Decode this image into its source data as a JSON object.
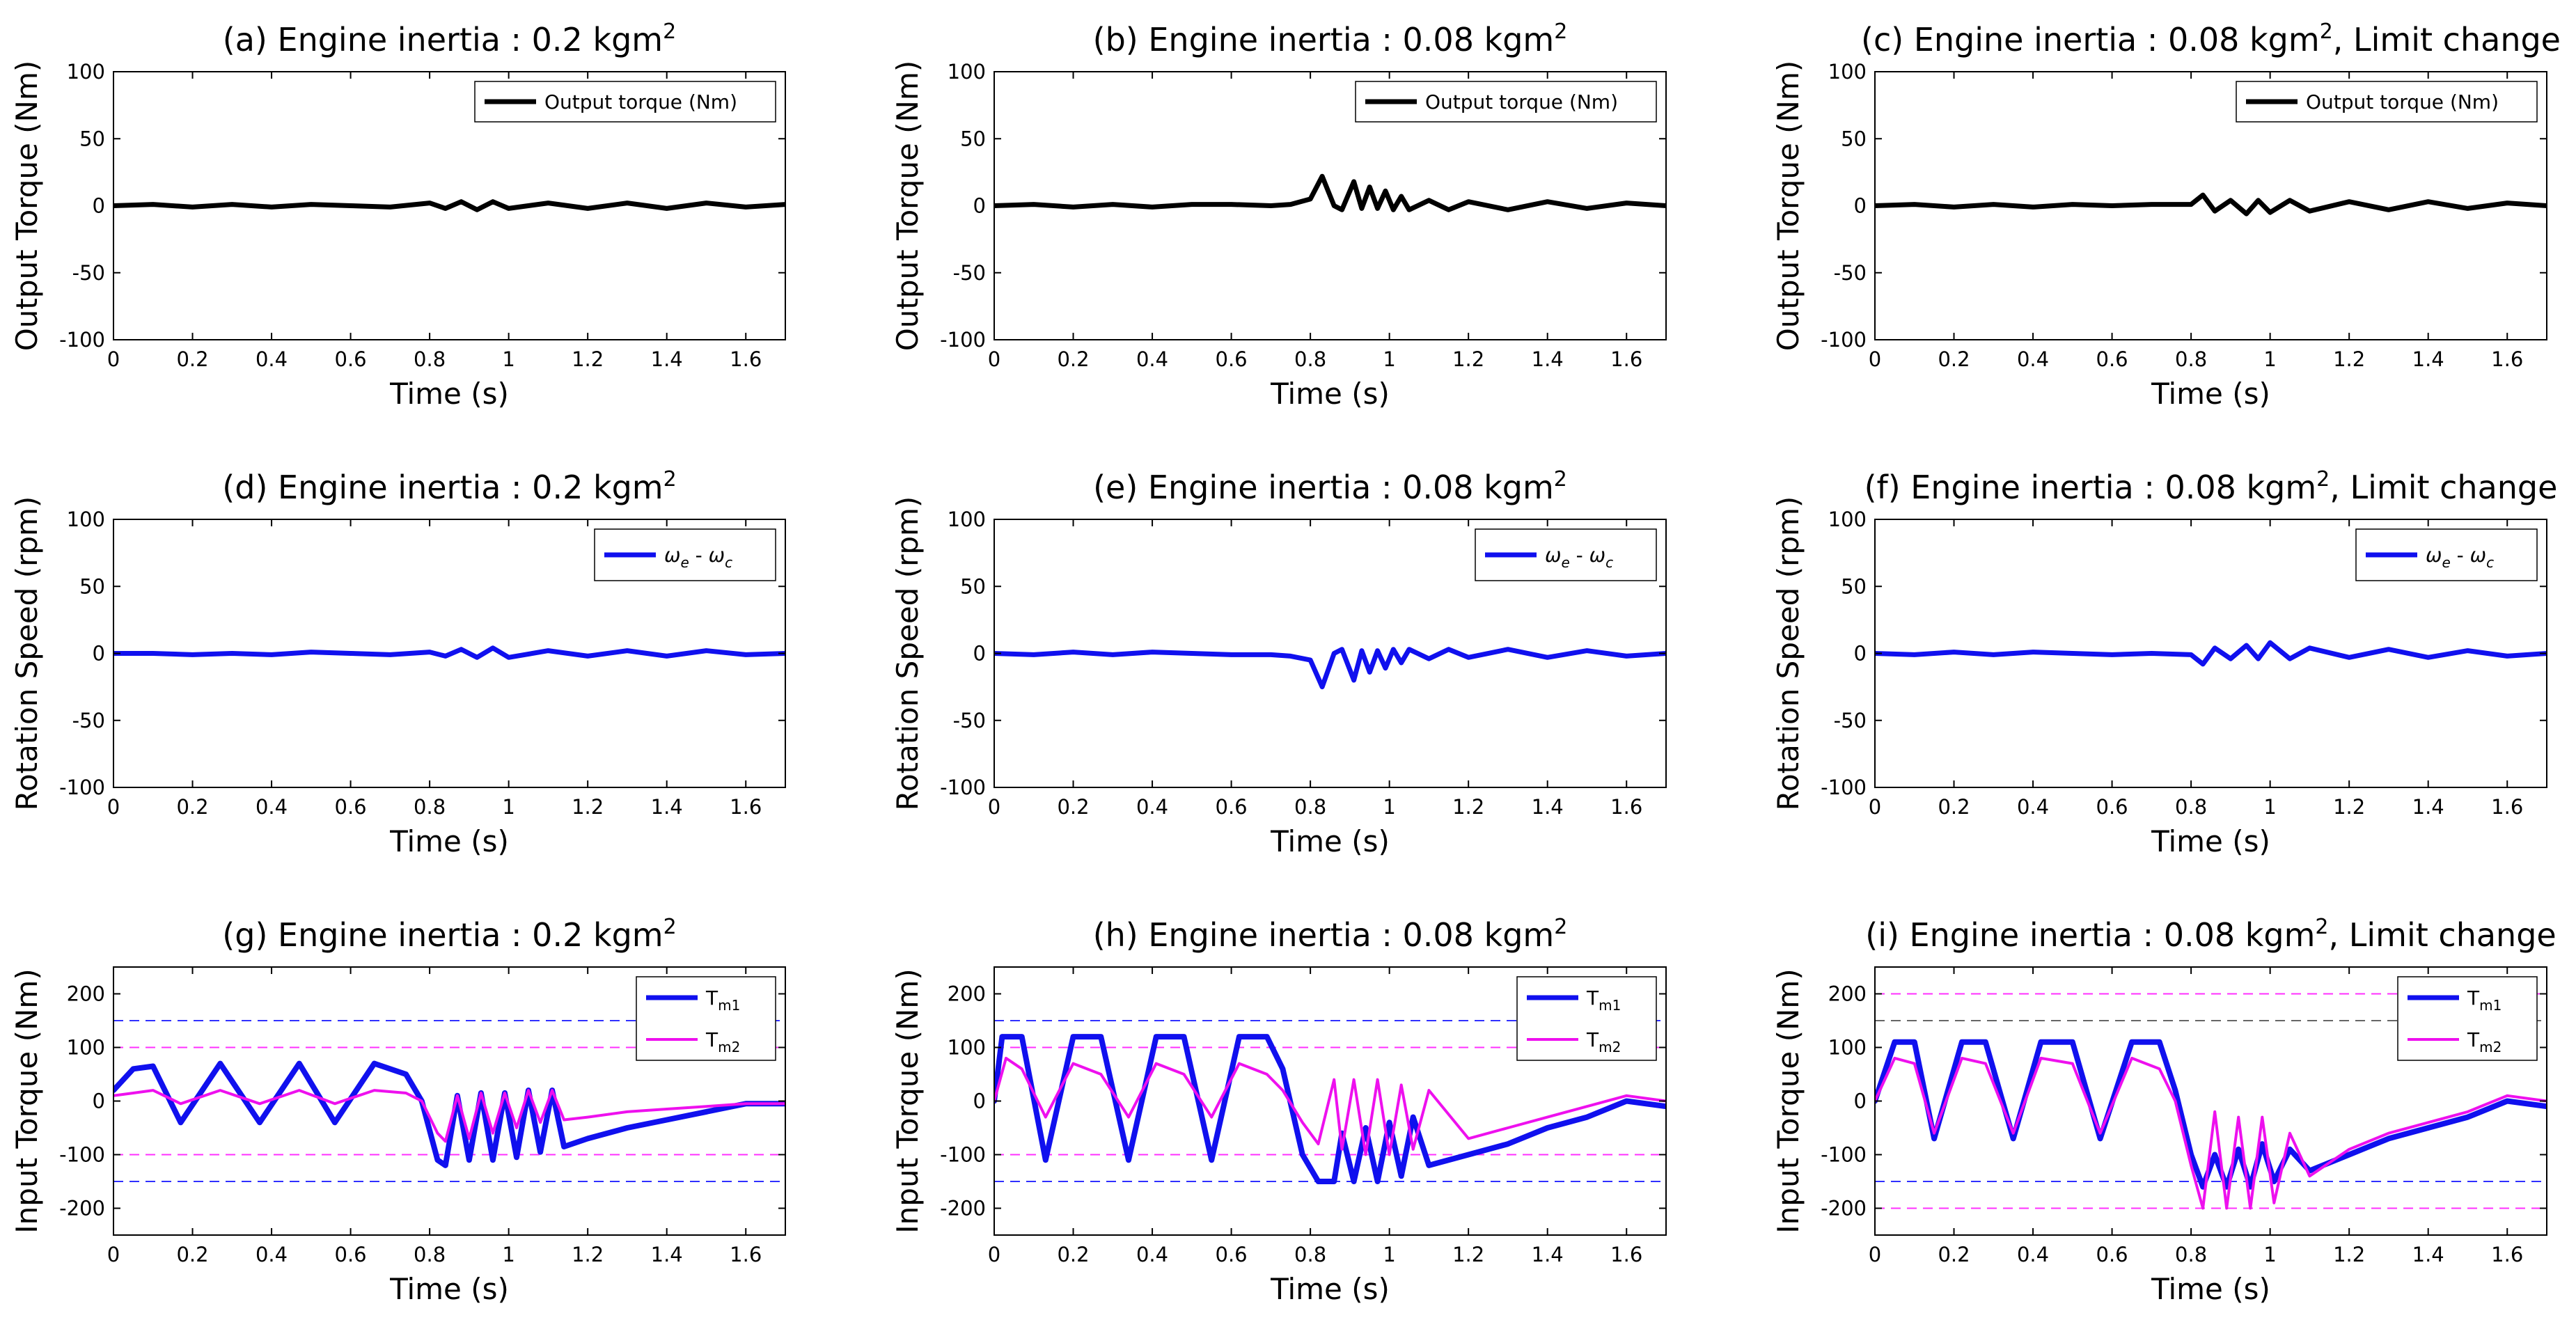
{
  "chart_data": [
    {
      "id": "a",
      "type": "line",
      "title": "(a) Engine inertia : 0.2 kgm",
      "title_sup": "2",
      "xlabel": "Time (s)",
      "ylabel": "Output Torque (Nm)",
      "xlim": [
        0,
        1.7
      ],
      "ylim": [
        -100,
        100
      ],
      "xticks": [
        0,
        0.2,
        0.4,
        0.6,
        0.8,
        1,
        1.2,
        1.4,
        1.6
      ],
      "yticks": [
        -100,
        -50,
        0,
        50,
        100
      ],
      "series": [
        {
          "name": "Output torque (Nm)",
          "color": "#000000",
          "x": [
            0,
            0.1,
            0.2,
            0.3,
            0.4,
            0.5,
            0.6,
            0.7,
            0.8,
            0.84,
            0.88,
            0.92,
            0.96,
            1.0,
            1.1,
            1.2,
            1.3,
            1.4,
            1.5,
            1.6,
            1.7
          ],
          "y": [
            0,
            1,
            -1,
            1,
            -1,
            1,
            0,
            -1,
            2,
            -2,
            3,
            -3,
            3,
            -2,
            2,
            -2,
            2,
            -2,
            2,
            -1,
            1
          ]
        }
      ],
      "hlines": []
    },
    {
      "id": "b",
      "type": "line",
      "title": "(b) Engine inertia : 0.08 kgm",
      "title_sup": "2",
      "xlabel": "Time (s)",
      "ylabel": "Output Torque (Nm)",
      "xlim": [
        0,
        1.7
      ],
      "ylim": [
        -100,
        100
      ],
      "xticks": [
        0,
        0.2,
        0.4,
        0.6,
        0.8,
        1,
        1.2,
        1.4,
        1.6
      ],
      "yticks": [
        -100,
        -50,
        0,
        50,
        100
      ],
      "series": [
        {
          "name": "Output torque (Nm)",
          "color": "#000000",
          "x": [
            0,
            0.1,
            0.2,
            0.3,
            0.4,
            0.5,
            0.6,
            0.7,
            0.75,
            0.8,
            0.83,
            0.86,
            0.88,
            0.91,
            0.93,
            0.95,
            0.97,
            0.99,
            1.01,
            1.03,
            1.05,
            1.1,
            1.15,
            1.2,
            1.3,
            1.4,
            1.5,
            1.6,
            1.7
          ],
          "y": [
            0,
            1,
            -1,
            1,
            -1,
            1,
            1,
            0,
            1,
            5,
            22,
            0,
            -3,
            18,
            -2,
            14,
            -2,
            11,
            -3,
            7,
            -3,
            4,
            -3,
            3,
            -3,
            3,
            -2,
            2,
            0
          ]
        }
      ],
      "hlines": []
    },
    {
      "id": "c",
      "type": "line",
      "title": "(c) Engine inertia : 0.08 kgm",
      "title_sup": "2",
      "title_suffix": ", Limit change",
      "xlabel": "Time (s)",
      "ylabel": "Output Torque (Nm)",
      "xlim": [
        0,
        1.7
      ],
      "ylim": [
        -100,
        100
      ],
      "xticks": [
        0,
        0.2,
        0.4,
        0.6,
        0.8,
        1,
        1.2,
        1.4,
        1.6
      ],
      "yticks": [
        -100,
        -50,
        0,
        50,
        100
      ],
      "series": [
        {
          "name": "Output torque (Nm)",
          "color": "#000000",
          "x": [
            0,
            0.1,
            0.2,
            0.3,
            0.4,
            0.5,
            0.6,
            0.7,
            0.8,
            0.83,
            0.86,
            0.9,
            0.94,
            0.97,
            1.0,
            1.05,
            1.1,
            1.2,
            1.3,
            1.4,
            1.5,
            1.6,
            1.7
          ],
          "y": [
            0,
            1,
            -1,
            1,
            -1,
            1,
            0,
            1,
            1,
            8,
            -4,
            4,
            -6,
            4,
            -5,
            4,
            -4,
            3,
            -3,
            3,
            -2,
            2,
            0
          ]
        }
      ],
      "hlines": []
    },
    {
      "id": "d",
      "type": "line",
      "title": "(d) Engine inertia : 0.2 kgm",
      "title_sup": "2",
      "xlabel": "Time (s)",
      "ylabel": "Rotation Speed (rpm)",
      "xlim": [
        0,
        1.7
      ],
      "ylim": [
        -100,
        100
      ],
      "xticks": [
        0,
        0.2,
        0.4,
        0.6,
        0.8,
        1,
        1.2,
        1.4,
        1.6
      ],
      "yticks": [
        -100,
        -50,
        0,
        50,
        100
      ],
      "series": [
        {
          "name": "ω_e - ω_c",
          "color": "#1010ee",
          "x": [
            0,
            0.1,
            0.2,
            0.3,
            0.4,
            0.5,
            0.6,
            0.7,
            0.8,
            0.84,
            0.88,
            0.92,
            0.96,
            1.0,
            1.1,
            1.2,
            1.3,
            1.4,
            1.5,
            1.6,
            1.7
          ],
          "y": [
            0,
            0,
            -1,
            0,
            -1,
            1,
            0,
            -1,
            1,
            -2,
            3,
            -3,
            4,
            -3,
            2,
            -2,
            2,
            -2,
            2,
            -1,
            0
          ]
        }
      ],
      "hlines": []
    },
    {
      "id": "e",
      "type": "line",
      "title": "(e) Engine inertia : 0.08 kgm",
      "title_sup": "2",
      "xlabel": "Time (s)",
      "ylabel": "Rotation Speed (rpm)",
      "xlim": [
        0,
        1.7
      ],
      "ylim": [
        -100,
        100
      ],
      "xticks": [
        0,
        0.2,
        0.4,
        0.6,
        0.8,
        1,
        1.2,
        1.4,
        1.6
      ],
      "yticks": [
        -100,
        -50,
        0,
        50,
        100
      ],
      "series": [
        {
          "name": "ω_e - ω_c",
          "color": "#1010ee",
          "x": [
            0,
            0.1,
            0.2,
            0.3,
            0.4,
            0.5,
            0.6,
            0.7,
            0.75,
            0.8,
            0.83,
            0.86,
            0.88,
            0.91,
            0.93,
            0.95,
            0.97,
            0.99,
            1.01,
            1.03,
            1.05,
            1.1,
            1.15,
            1.2,
            1.3,
            1.4,
            1.5,
            1.6,
            1.7
          ],
          "y": [
            0,
            -1,
            1,
            -1,
            1,
            0,
            -1,
            -1,
            -2,
            -5,
            -25,
            0,
            3,
            -20,
            2,
            -14,
            2,
            -11,
            3,
            -7,
            3,
            -4,
            3,
            -3,
            3,
            -3,
            2,
            -2,
            0
          ]
        }
      ],
      "hlines": []
    },
    {
      "id": "f",
      "type": "line",
      "title": "(f) Engine inertia : 0.08 kgm",
      "title_sup": "2",
      "title_suffix": ", Limit change",
      "xlabel": "Time (s)",
      "ylabel": "Rotation Speed (rpm)",
      "xlim": [
        0,
        1.7
      ],
      "ylim": [
        -100,
        100
      ],
      "xticks": [
        0,
        0.2,
        0.4,
        0.6,
        0.8,
        1,
        1.2,
        1.4,
        1.6
      ],
      "yticks": [
        -100,
        -50,
        0,
        50,
        100
      ],
      "series": [
        {
          "name": "ω_e - ω_c",
          "color": "#1010ee",
          "x": [
            0,
            0.1,
            0.2,
            0.3,
            0.4,
            0.5,
            0.6,
            0.7,
            0.8,
            0.83,
            0.86,
            0.9,
            0.94,
            0.97,
            1.0,
            1.05,
            1.1,
            1.2,
            1.3,
            1.4,
            1.5,
            1.6,
            1.7
          ],
          "y": [
            0,
            -1,
            1,
            -1,
            1,
            0,
            -1,
            0,
            -1,
            -8,
            4,
            -4,
            6,
            -4,
            8,
            -4,
            4,
            -3,
            3,
            -3,
            2,
            -2,
            0
          ]
        }
      ],
      "hlines": []
    },
    {
      "id": "g",
      "type": "line",
      "title": "(g) Engine inertia : 0.2 kgm",
      "title_sup": "2",
      "xlabel": "Time (s)",
      "ylabel": "Input Torque (Nm)",
      "xlim": [
        0,
        1.7
      ],
      "ylim": [
        -250,
        250
      ],
      "xticks": [
        0,
        0.2,
        0.4,
        0.6,
        0.8,
        1,
        1.2,
        1.4,
        1.6
      ],
      "yticks": [
        -200,
        -100,
        0,
        100,
        200
      ],
      "series": [
        {
          "name": "T_m1",
          "color": "#1010ee",
          "x": [
            0,
            0.05,
            0.1,
            0.17,
            0.27,
            0.37,
            0.47,
            0.56,
            0.66,
            0.74,
            0.78,
            0.82,
            0.84,
            0.87,
            0.9,
            0.93,
            0.96,
            0.99,
            1.02,
            1.05,
            1.08,
            1.11,
            1.14,
            1.2,
            1.3,
            1.4,
            1.5,
            1.6,
            1.7
          ],
          "y": [
            20,
            60,
            65,
            -40,
            70,
            -40,
            70,
            -40,
            70,
            50,
            0,
            -110,
            -120,
            10,
            -110,
            15,
            -110,
            15,
            -105,
            20,
            -95,
            20,
            -85,
            -70,
            -50,
            -35,
            -20,
            -5,
            -5
          ]
        },
        {
          "name": "T_m2",
          "color": "#ee10ee",
          "x": [
            0,
            0.05,
            0.1,
            0.17,
            0.27,
            0.37,
            0.47,
            0.56,
            0.66,
            0.74,
            0.78,
            0.82,
            0.84,
            0.87,
            0.9,
            0.93,
            0.96,
            0.99,
            1.02,
            1.05,
            1.08,
            1.11,
            1.14,
            1.2,
            1.3,
            1.4,
            1.5,
            1.6,
            1.7
          ],
          "y": [
            10,
            15,
            20,
            -5,
            20,
            -5,
            20,
            -5,
            20,
            15,
            0,
            -60,
            -75,
            10,
            -70,
            15,
            -60,
            15,
            -50,
            20,
            -40,
            20,
            -35,
            -30,
            -20,
            -15,
            -10,
            -5,
            -5
          ]
        }
      ],
      "hlines": [
        {
          "y": 150,
          "color": "#3030ff"
        },
        {
          "y": -150,
          "color": "#3030ff"
        },
        {
          "y": 100,
          "color": "#ff30ff"
        },
        {
          "y": -100,
          "color": "#ff30ff"
        }
      ]
    },
    {
      "id": "h",
      "type": "line",
      "title": "(h) Engine inertia : 0.08 kgm",
      "title_sup": "2",
      "xlabel": "Time (s)",
      "ylabel": "Input Torque (Nm)",
      "xlim": [
        0,
        1.7
      ],
      "ylim": [
        -250,
        250
      ],
      "xticks": [
        0,
        0.2,
        0.4,
        0.6,
        0.8,
        1,
        1.2,
        1.4,
        1.6
      ],
      "yticks": [
        -200,
        -100,
        0,
        100,
        200
      ],
      "series": [
        {
          "name": "T_m1",
          "color": "#1010ee",
          "x": [
            0,
            0.02,
            0.07,
            0.13,
            0.2,
            0.27,
            0.34,
            0.41,
            0.48,
            0.55,
            0.62,
            0.69,
            0.73,
            0.78,
            0.82,
            0.86,
            0.88,
            0.91,
            0.94,
            0.97,
            1.0,
            1.03,
            1.06,
            1.1,
            1.2,
            1.3,
            1.4,
            1.5,
            1.6,
            1.7
          ],
          "y": [
            0,
            120,
            120,
            -110,
            120,
            120,
            -110,
            120,
            120,
            -110,
            120,
            120,
            60,
            -100,
            -150,
            -150,
            -60,
            -150,
            -50,
            -150,
            -40,
            -140,
            -30,
            -120,
            -100,
            -80,
            -50,
            -30,
            0,
            -10
          ]
        },
        {
          "name": "T_m2",
          "color": "#ee10ee",
          "x": [
            0,
            0.03,
            0.07,
            0.13,
            0.2,
            0.27,
            0.34,
            0.41,
            0.48,
            0.55,
            0.62,
            0.69,
            0.73,
            0.78,
            0.82,
            0.86,
            0.88,
            0.91,
            0.94,
            0.97,
            1.0,
            1.03,
            1.06,
            1.1,
            1.2,
            1.3,
            1.4,
            1.5,
            1.6,
            1.7
          ],
          "y": [
            0,
            80,
            60,
            -30,
            70,
            50,
            -30,
            70,
            50,
            -30,
            70,
            50,
            20,
            -40,
            -80,
            40,
            -90,
            40,
            -100,
            40,
            -100,
            30,
            -90,
            20,
            -70,
            -50,
            -30,
            -10,
            10,
            0
          ]
        }
      ],
      "hlines": [
        {
          "y": 150,
          "color": "#3030ff"
        },
        {
          "y": -150,
          "color": "#3030ff"
        },
        {
          "y": 100,
          "color": "#ff30ff"
        },
        {
          "y": -100,
          "color": "#ff30ff"
        }
      ]
    },
    {
      "id": "i",
      "type": "line",
      "title": "(i) Engine inertia : 0.08 kgm",
      "title_sup": "2",
      "title_suffix": ", Limit change",
      "xlabel": "Time (s)",
      "ylabel": "Input Torque (Nm)",
      "xlim": [
        0,
        1.7
      ],
      "ylim": [
        -250,
        250
      ],
      "xticks": [
        0,
        0.2,
        0.4,
        0.6,
        0.8,
        1,
        1.2,
        1.4,
        1.6
      ],
      "yticks": [
        -200,
        -100,
        0,
        100,
        200
      ],
      "series": [
        {
          "name": "T_m1",
          "color": "#1010ee",
          "x": [
            0,
            0.05,
            0.1,
            0.15,
            0.22,
            0.28,
            0.35,
            0.42,
            0.5,
            0.57,
            0.65,
            0.72,
            0.76,
            0.8,
            0.83,
            0.86,
            0.89,
            0.92,
            0.95,
            0.98,
            1.01,
            1.05,
            1.1,
            1.2,
            1.3,
            1.4,
            1.5,
            1.6,
            1.7
          ],
          "y": [
            0,
            110,
            110,
            -70,
            110,
            110,
            -70,
            110,
            110,
            -70,
            110,
            110,
            20,
            -100,
            -160,
            -100,
            -160,
            -90,
            -160,
            -80,
            -150,
            -90,
            -130,
            -100,
            -70,
            -50,
            -30,
            0,
            -10
          ]
        },
        {
          "name": "T_m2",
          "color": "#ee10ee",
          "x": [
            0,
            0.05,
            0.1,
            0.15,
            0.22,
            0.28,
            0.35,
            0.42,
            0.5,
            0.57,
            0.65,
            0.72,
            0.76,
            0.8,
            0.83,
            0.86,
            0.89,
            0.92,
            0.95,
            0.98,
            1.01,
            1.05,
            1.1,
            1.2,
            1.3,
            1.4,
            1.5,
            1.6,
            1.7
          ],
          "y": [
            0,
            80,
            70,
            -60,
            80,
            70,
            -60,
            80,
            70,
            -60,
            80,
            60,
            0,
            -120,
            -200,
            -20,
            -200,
            -30,
            -200,
            -30,
            -190,
            -60,
            -140,
            -90,
            -60,
            -40,
            -20,
            10,
            0
          ]
        }
      ],
      "hlines": [
        {
          "y": 200,
          "color": "#ff30ff"
        },
        {
          "y": -200,
          "color": "#ff30ff"
        },
        {
          "y": 150,
          "color": "#666666"
        },
        {
          "y": -150,
          "color": "#3030ff"
        }
      ]
    }
  ]
}
